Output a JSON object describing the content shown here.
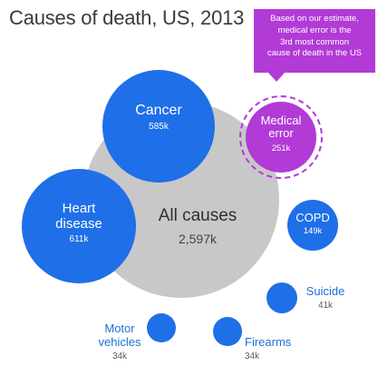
{
  "chart_data": {
    "type": "bubble",
    "title": "Causes of death, US, 2013",
    "unit": "k",
    "total": {
      "label": "All causes",
      "value": 2597,
      "display": "2,597k"
    },
    "items": [
      {
        "label": "Cancer",
        "value": 585,
        "display": "585k",
        "color": "#1f6fe8"
      },
      {
        "label": "Heart disease",
        "label_lines": [
          "Heart",
          "disease"
        ],
        "value": 611,
        "display": "611k",
        "color": "#1f6fe8"
      },
      {
        "label": "Medical error",
        "label_lines": [
          "Medical",
          "error"
        ],
        "value": 251,
        "display": "251k",
        "color": "#b23ad6",
        "highlighted": true
      },
      {
        "label": "COPD",
        "value": 149,
        "display": "149k",
        "color": "#1f6fe8"
      },
      {
        "label": "Suicide",
        "value": 41,
        "display": "41k",
        "color": "#1f6fe8"
      },
      {
        "label": "Firearms",
        "value": 34,
        "display": "34k",
        "color": "#1f6fe8"
      },
      {
        "label": "Motor vehicles",
        "label_lines": [
          "Motor",
          "vehicles"
        ],
        "value": 34,
        "display": "34k",
        "color": "#1f6fe8"
      }
    ],
    "annotation": {
      "lines": [
        "Based on our estimate,",
        "medical error is the",
        "3rd most common",
        "cause of death in the US"
      ],
      "color": "#b23ad6"
    },
    "colors": {
      "total": "#c8c8c8",
      "cause": "#1f6fe8",
      "highlight": "#b23ad6"
    }
  }
}
